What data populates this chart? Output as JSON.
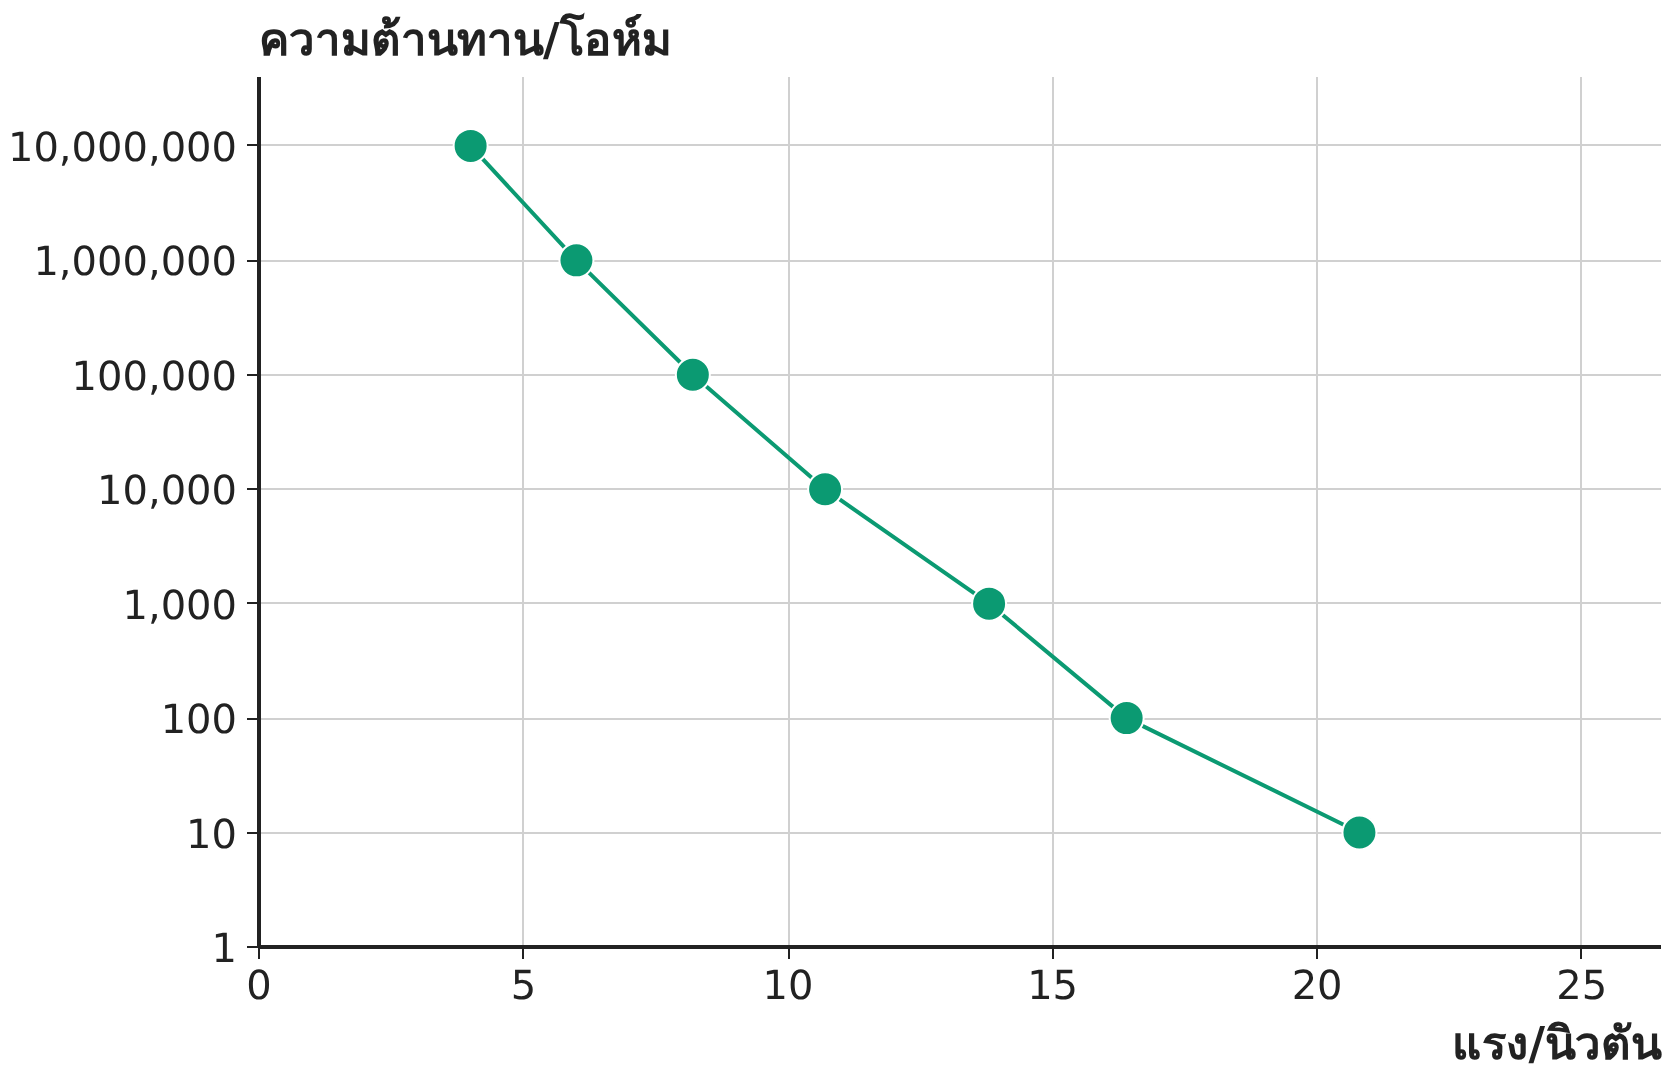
{
  "chart_data": {
    "type": "line",
    "xlabel": "แรง/นิวตัน",
    "ylabel": "ความต้านทาน/โอห์ม",
    "x": [
      4.0,
      6.0,
      8.2,
      10.7,
      13.8,
      16.4,
      20.8
    ],
    "series": [
      {
        "color": "#0b9a72",
        "values": [
          10000000,
          1000000,
          100000,
          10000,
          1000,
          100,
          10
        ]
      }
    ],
    "xlim": [
      0,
      26.5
    ],
    "xticks": [
      0,
      5,
      10,
      15,
      20,
      25
    ],
    "ylim": [
      1,
      40000000
    ],
    "yticks": [
      1,
      10,
      100,
      {
        "value": 1000,
        "label": "1,000"
      },
      {
        "value": 10000,
        "label": "10,000"
      },
      {
        "value": 100000,
        "label": "100,000"
      },
      {
        "value": 1000000,
        "label": "1,000,000"
      },
      {
        "value": 10000000,
        "label": "10,000,000"
      }
    ],
    "log": "y",
    "grid": true,
    "marker": "circle",
    "line_style": "solid"
  }
}
